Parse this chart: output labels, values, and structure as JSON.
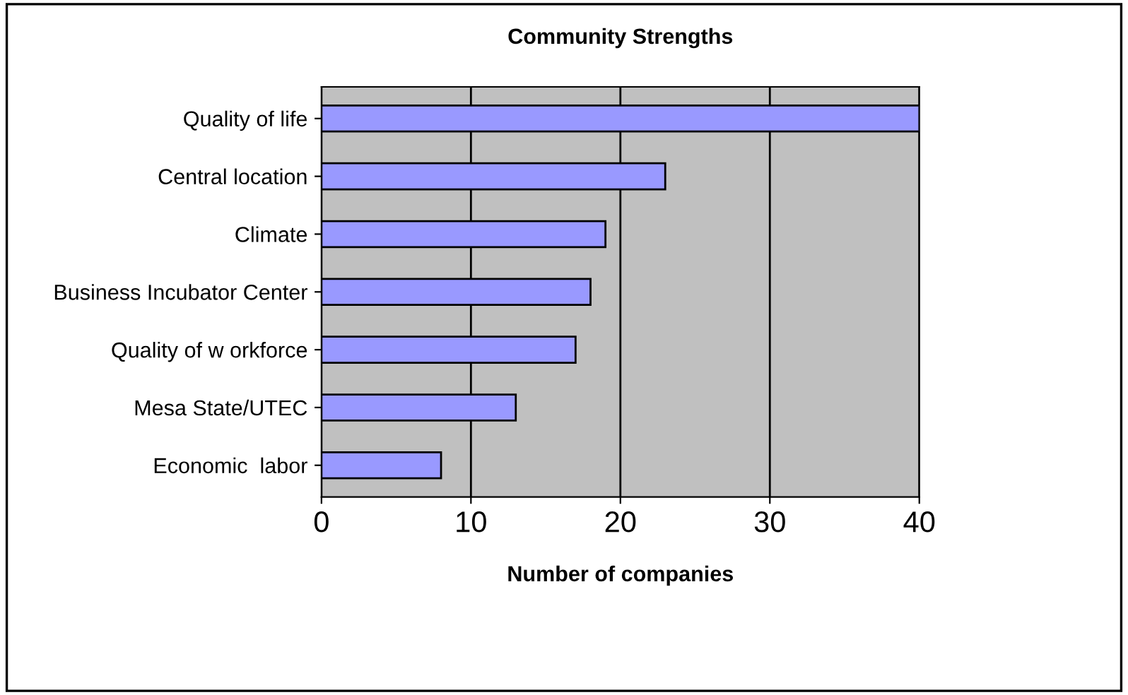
{
  "chart_data": {
    "type": "bar",
    "orientation": "horizontal",
    "title": "Community Strengths",
    "xlabel": "Number of companies",
    "categories": [
      "Quality of life",
      "Central location",
      "Climate",
      "Business Incubator Center",
      "Quality of w orkforce",
      "Mesa State/UTEC",
      "Economic  labor"
    ],
    "values": [
      40,
      23,
      19,
      18,
      17,
      13,
      8
    ],
    "color": "#9999ff",
    "xlim": [
      0,
      40
    ],
    "xticks": [
      0,
      10,
      20,
      30,
      40
    ],
    "grid": "x"
  }
}
